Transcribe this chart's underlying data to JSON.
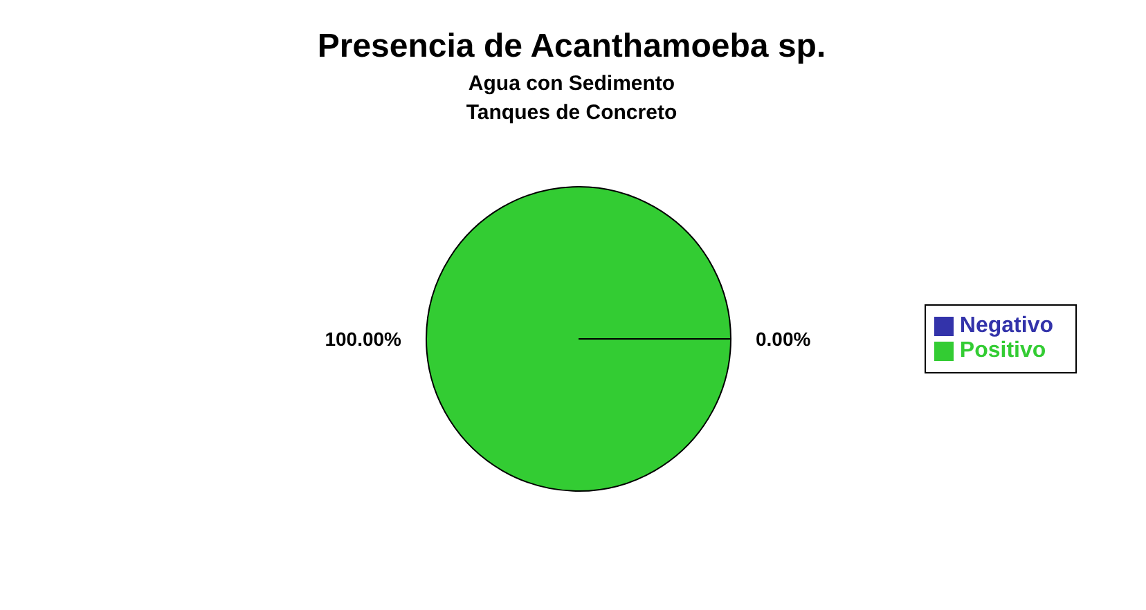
{
  "chart_data": {
    "type": "pie",
    "title": "Presencia de Acanthamoeba sp.",
    "subtitle": "Agua con Sedimento\nTanques de Concreto",
    "categories": [
      "Negativo",
      "Positivo"
    ],
    "values": [
      0,
      100
    ],
    "colors": [
      "#3333aa",
      "#33cc33"
    ],
    "value_labels": [
      "0.00%",
      "100.00%"
    ],
    "legend": "right"
  }
}
